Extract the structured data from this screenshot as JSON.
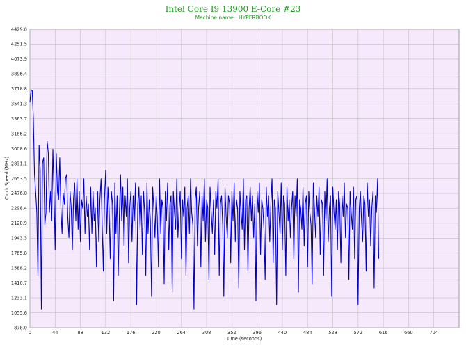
{
  "chart_data": {
    "type": "line",
    "title": "Intel Core I9 13900 E-Core #23",
    "subtitle": "Machine name : HYPERBOOK",
    "xlabel": "Time (seconds)",
    "ylabel": "Clock Speed (MHz)",
    "xlim": [
      0,
      748
    ],
    "ylim": [
      878.0,
      4429.0
    ],
    "x_ticks": [
      "0",
      "44",
      "88",
      "132",
      "176",
      "220",
      "264",
      "308",
      "352",
      "396",
      "440",
      "484",
      "528",
      "572",
      "616",
      "660",
      "704"
    ],
    "y_ticks": [
      "878.0",
      "1055.6",
      "1233.1",
      "1410.7",
      "1588.2",
      "1765.8",
      "1943.3",
      "2120.9",
      "2298.4",
      "2476.0",
      "2653.5",
      "2831.1",
      "3008.6",
      "3186.2",
      "3363.7",
      "3541.3",
      "3718.8",
      "3896.4",
      "4073.9",
      "4251.5",
      "4429.0"
    ],
    "grid": true,
    "legend": "none",
    "colors": {
      "plot_background": "#f5e9fb",
      "grid": "#c0c0c0",
      "line": "#0000cc",
      "title": "#1f9a1f"
    },
    "series": [
      {
        "sampling_seconds": 2,
        "start_x": 0,
        "values": [
          3560,
          3700,
          3700,
          3380,
          2700,
          2500,
          2250,
          1500,
          3050,
          2750,
          1100,
          2840,
          2900,
          2100,
          2250,
          3100,
          2960,
          2250,
          2500,
          2150,
          3000,
          2500,
          1800,
          2950,
          2500,
          2400,
          2900,
          2300,
          2000,
          2480,
          2350,
          2650,
          2700,
          2200,
          1950,
          2500,
          2300,
          1800,
          2420,
          2600,
          2150,
          2650,
          2050,
          2500,
          1900,
          2400,
          2300,
          2650,
          2000,
          2450,
          2200,
          2350,
          1800,
          2550,
          2000,
          2500,
          2150,
          2300,
          1600,
          2500,
          1900,
          2400,
          2650,
          2100,
          1550,
          2400,
          2750,
          2000,
          2550,
          2300,
          1700,
          2500,
          2350,
          1200,
          2600,
          2000,
          2450,
          1500,
          2250,
          2700,
          2150,
          2550,
          1850,
          2450,
          2200,
          2650,
          1650,
          2300,
          2500,
          1900,
          2450,
          2150,
          2600,
          1150,
          2350,
          2550,
          2050,
          2450,
          1750,
          2500,
          2250,
          1500,
          2600,
          2000,
          2400,
          2150,
          1250,
          2550,
          2300,
          1950,
          2450,
          2200,
          1600,
          2650,
          2000,
          2400,
          2300,
          1400,
          2500,
          2150,
          2600,
          1800,
          2350,
          2450,
          1300,
          2500,
          2250,
          2050,
          2650,
          1950,
          2300,
          2500,
          1700,
          2400,
          2200,
          2550,
          1500,
          2300,
          2450,
          2000,
          2650,
          2250,
          2100,
          1100,
          2400,
          2550,
          1850,
          2300,
          2500,
          1600,
          2450,
          2150,
          2650,
          1900,
          2400,
          2300,
          1450,
          2550,
          2250,
          2000,
          2400,
          1750,
          2500,
          2300,
          2650,
          1500,
          2350,
          2450,
          2100,
          1250,
          2550,
          2200,
          1950,
          2450,
          2350,
          1650,
          2500,
          2150,
          2600,
          1900,
          2400,
          2300,
          1350,
          2500,
          2250,
          2050,
          2650,
          1800,
          2400,
          2450,
          1550,
          2300,
          2550,
          2150,
          2450,
          1950,
          2350,
          1200,
          2500,
          2250,
          2600,
          1750,
          2400,
          2300,
          2050,
          1450,
          2550,
          2200,
          2450,
          1900,
          2350,
          2650,
          1650,
          2400,
          2300,
          1150,
          2500,
          2250,
          2000,
          2600,
          1800,
          2450,
          2350,
          1500,
          2550,
          2150,
          2400,
          1950,
          2300,
          2500,
          1700,
          2450,
          2200,
          2650,
          1300,
          2400,
          2300,
          2050,
          2550,
          1850,
          2350,
          2450,
          1600,
          2500,
          2250,
          2100,
          1400,
          2600,
          2300,
          1950,
          2450,
          2200,
          2550,
          1750,
          2400,
          2350,
          1500,
          2500,
          2150,
          2650,
          1900,
          2300,
          2450,
          1250,
          2550,
          2250,
          2050,
          2400,
          1800,
          2500,
          2350,
          1650,
          2450,
          2200,
          2600,
          1950,
          2350,
          2300,
          1450,
          2500,
          2250,
          2050,
          2550,
          1700,
          2400,
          2450,
          1150,
          2300,
          2500,
          2150,
          1900,
          2450,
          2350,
          1550,
          2600,
          2200,
          2400,
          1850,
          2300,
          2500,
          1350,
          2450,
          2250,
          2650,
          1700
        ]
      }
    ]
  }
}
